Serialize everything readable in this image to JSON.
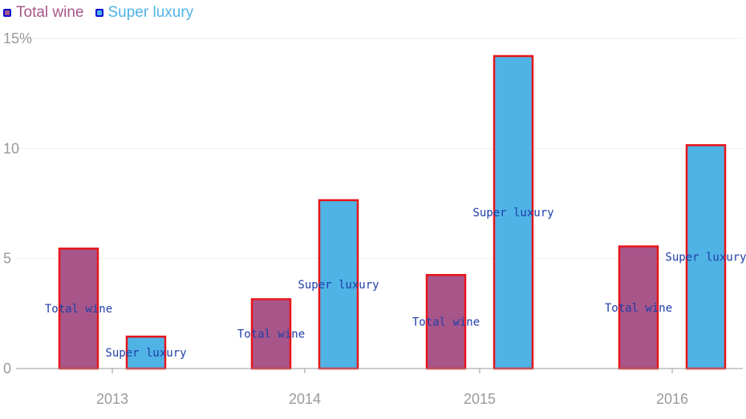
{
  "chart_data": {
    "type": "bar",
    "categories": [
      "2013",
      "2014",
      "2015",
      "2016"
    ],
    "series": [
      {
        "name": "Total wine",
        "values": [
          5.45,
          3.15,
          4.25,
          5.55
        ],
        "color": "#a8568a"
      },
      {
        "name": "Super luxury",
        "values": [
          1.45,
          7.65,
          14.2,
          10.15
        ],
        "color": "#4fb3e6"
      }
    ],
    "y_ticks": [
      "0",
      "5",
      "10",
      "15%"
    ],
    "y_tick_values": [
      0,
      5,
      10,
      15
    ],
    "ylim": [
      0,
      15
    ],
    "grid": true,
    "legend_position": "top-left",
    "bar_border_color": "#e8141b",
    "legend_swatch_border_color": "#0b0bd6",
    "label_color": "#1f3ea8"
  }
}
